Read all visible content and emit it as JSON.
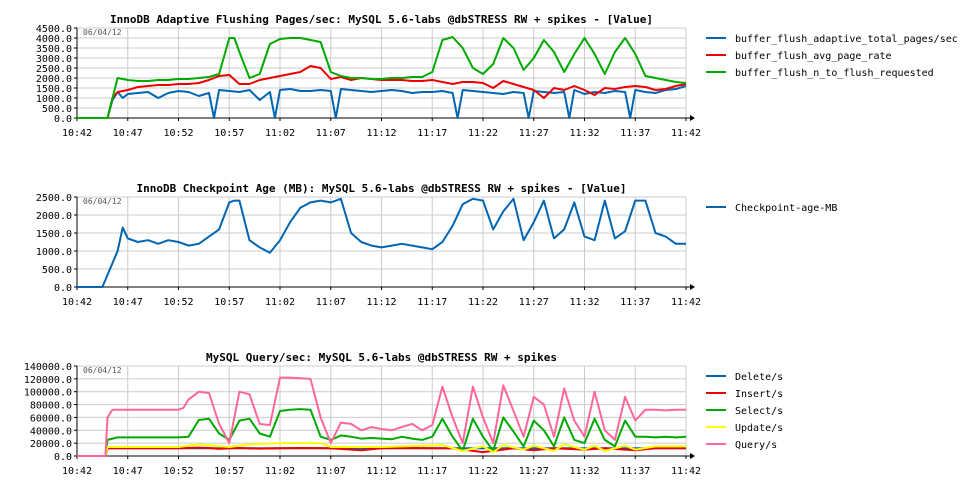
{
  "colors": {
    "blue": "#0066b3",
    "red": "#ee0000",
    "green": "#00aa00",
    "yellow": "#ffff00",
    "pink": "#ff6699",
    "grid": "#cccccc",
    "axis": "#000000"
  },
  "x_ticks": [
    "10:42",
    "10:47",
    "10:52",
    "10:57",
    "11:02",
    "11:07",
    "11:12",
    "11:17",
    "11:22",
    "11:27",
    "11:32",
    "11:37",
    "11:42"
  ],
  "chart_data": [
    {
      "type": "line",
      "title": "InnoDB Adaptive Flushing Pages/sec: MySQL 5.6-labs @dbSTRESS RW + spikes - [Value]",
      "date_stamp": "06/04/12",
      "xlabel": "",
      "ylabel": "",
      "x_range": [
        "10:42",
        "11:42"
      ],
      "ylim": [
        0,
        4500
      ],
      "y_ticks": [
        "0.0",
        "500.0",
        "1000.0",
        "1500.0",
        "2000.0",
        "2500.0",
        "3000.0",
        "3500.0",
        "4000.0",
        "4500.0"
      ],
      "y_tick_values": [
        0,
        500,
        1000,
        1500,
        2000,
        2500,
        3000,
        3500,
        4000,
        4500
      ],
      "grid": true,
      "legend_position": "right",
      "series": [
        {
          "name": "buffer_flush_adaptive_total_pages/sec",
          "color": "#0066b3",
          "x": [
            0,
            3,
            3.5,
            4,
            4.5,
            5,
            6,
            7,
            8,
            9,
            10,
            11,
            12,
            13,
            13.5,
            14,
            15,
            16,
            17,
            18,
            19,
            19.5,
            20,
            21,
            22,
            23,
            24,
            25,
            25.5,
            26,
            27,
            28,
            29,
            30,
            31,
            32,
            33,
            34,
            35,
            36,
            37,
            37.5,
            38,
            39,
            40,
            41,
            42,
            43,
            44,
            44.5,
            45,
            46,
            47,
            48,
            48.5,
            49,
            50,
            51,
            52,
            53,
            54,
            54.5,
            55,
            56,
            57,
            58,
            59,
            60
          ],
          "values": [
            0,
            0,
            900,
            1300,
            1000,
            1200,
            1250,
            1300,
            1000,
            1250,
            1350,
            1300,
            1100,
            1250,
            0,
            1400,
            1350,
            1300,
            1400,
            900,
            1300,
            0,
            1400,
            1450,
            1350,
            1350,
            1400,
            1350,
            0,
            1450,
            1400,
            1350,
            1300,
            1350,
            1400,
            1350,
            1250,
            1300,
            1300,
            1350,
            1250,
            0,
            1400,
            1350,
            1300,
            1250,
            1200,
            1300,
            1250,
            0,
            1350,
            1300,
            1250,
            1300,
            0,
            1400,
            1200,
            1300,
            1250,
            1350,
            1300,
            0,
            1400,
            1300,
            1250,
            1400,
            1450,
            1600
          ]
        },
        {
          "name": "buffer_flush_avg_page_rate",
          "color": "#ee0000",
          "x": [
            0,
            3,
            3.5,
            4,
            5,
            6,
            7,
            8,
            9,
            10,
            11,
            12,
            13,
            14,
            15,
            16,
            17,
            18,
            19,
            20,
            21,
            22,
            23,
            24,
            25,
            26,
            27,
            28,
            29,
            30,
            31,
            32,
            33,
            34,
            35,
            36,
            37,
            38,
            39,
            40,
            41,
            42,
            43,
            44,
            45,
            46,
            47,
            48,
            49,
            50,
            51,
            52,
            53,
            54,
            55,
            56,
            57,
            58,
            59,
            60
          ],
          "values": [
            0,
            0,
            1000,
            1300,
            1400,
            1550,
            1600,
            1650,
            1650,
            1700,
            1700,
            1750,
            1900,
            2100,
            2150,
            1700,
            1700,
            1900,
            2000,
            2100,
            2200,
            2300,
            2600,
            2500,
            1950,
            2050,
            1900,
            2000,
            1950,
            1900,
            1900,
            1900,
            1850,
            1850,
            1900,
            1800,
            1700,
            1800,
            1800,
            1750,
            1500,
            1850,
            1700,
            1550,
            1400,
            1000,
            1500,
            1400,
            1600,
            1400,
            1150,
            1500,
            1450,
            1550,
            1600,
            1550,
            1400,
            1450,
            1600,
            1700
          ]
        },
        {
          "name": "buffer_flush_n_to_flush_requested",
          "color": "#00aa00",
          "x": [
            0,
            3,
            4,
            5,
            6,
            7,
            8,
            9,
            10,
            11,
            12,
            13,
            14,
            15,
            15.5,
            16,
            17,
            18,
            19,
            20,
            21,
            22,
            23,
            24,
            25,
            26,
            27,
            28,
            29,
            30,
            31,
            32,
            33,
            34,
            35,
            36,
            37,
            38,
            39,
            40,
            41,
            42,
            43,
            44,
            45,
            46,
            47,
            48,
            49,
            50,
            51,
            52,
            53,
            54,
            55,
            56,
            57,
            58,
            59,
            60
          ],
          "values": [
            0,
            0,
            2000,
            1900,
            1850,
            1850,
            1900,
            1900,
            1950,
            1950,
            2000,
            2050,
            2200,
            4000,
            4000,
            3300,
            2000,
            2200,
            3700,
            3950,
            4000,
            4000,
            3900,
            3800,
            2300,
            2100,
            2000,
            2000,
            1950,
            1950,
            2000,
            2000,
            2050,
            2050,
            2300,
            3900,
            4050,
            3500,
            2500,
            2200,
            2700,
            4000,
            3500,
            2400,
            3000,
            3900,
            3300,
            2300,
            3200,
            4000,
            3200,
            2200,
            3300,
            4000,
            3200,
            2100,
            2000,
            1900,
            1800,
            1750
          ]
        }
      ]
    },
    {
      "type": "line",
      "title": "InnoDB Checkpoint Age (MB): MySQL 5.6-labs @dbSTRESS RW + spikes - [Value]",
      "date_stamp": "06/04/12",
      "xlabel": "",
      "ylabel": "",
      "x_range": [
        "10:42",
        "11:42"
      ],
      "ylim": [
        0,
        2500
      ],
      "y_ticks": [
        "0.0",
        "500.0",
        "1000.0",
        "1500.0",
        "2000.0",
        "2500.0"
      ],
      "y_tick_values": [
        0,
        500,
        1000,
        1500,
        2000,
        2500
      ],
      "grid": true,
      "legend_position": "right",
      "series": [
        {
          "name": "Checkpoint-age-MB",
          "color": "#0066b3",
          "x": [
            0,
            2.5,
            4,
            4.5,
            5,
            6,
            7,
            8,
            9,
            10,
            11,
            12,
            13,
            14,
            15,
            15.5,
            16,
            17,
            18,
            19,
            20,
            21,
            22,
            23,
            24,
            25,
            26,
            27,
            28,
            29,
            30,
            31,
            32,
            33,
            34,
            35,
            36,
            37,
            38,
            39,
            40,
            41,
            42,
            43,
            44,
            45,
            46,
            47,
            48,
            49,
            50,
            51,
            52,
            53,
            54,
            55,
            56,
            57,
            58,
            59,
            60
          ],
          "values": [
            0,
            0,
            1000,
            1650,
            1350,
            1250,
            1300,
            1200,
            1300,
            1250,
            1150,
            1200,
            1400,
            1600,
            2350,
            2400,
            2400,
            1300,
            1100,
            950,
            1300,
            1800,
            2200,
            2350,
            2400,
            2350,
            2450,
            1500,
            1250,
            1150,
            1100,
            1150,
            1200,
            1150,
            1100,
            1050,
            1250,
            1700,
            2300,
            2450,
            2400,
            1600,
            2100,
            2450,
            1300,
            1800,
            2400,
            1350,
            1600,
            2350,
            1400,
            1300,
            2400,
            1350,
            1550,
            2400,
            2400,
            1500,
            1400,
            1200,
            1200
          ]
        }
      ]
    },
    {
      "type": "line",
      "title": "MySQL Query/sec: MySQL 5.6-labs @dbSTRESS RW + spikes",
      "date_stamp": "06/04/12",
      "xlabel": "",
      "ylabel": "",
      "x_range": [
        "10:42",
        "11:42"
      ],
      "ylim": [
        0,
        140000
      ],
      "y_ticks": [
        "0.0",
        "20000.0",
        "40000.0",
        "60000.0",
        "80000.0",
        "100000.0",
        "120000.0",
        "140000.0"
      ],
      "y_tick_values": [
        0,
        20000,
        40000,
        60000,
        80000,
        100000,
        120000,
        140000
      ],
      "grid": true,
      "legend_position": "right",
      "series": [
        {
          "name": "Delete/s",
          "color": "#0066b3",
          "x": [
            0,
            2.8,
            3,
            60
          ],
          "values": [
            0,
            0,
            12000,
            12000
          ]
        },
        {
          "name": "Insert/s",
          "color": "#ee0000",
          "x": [
            0,
            2.8,
            3,
            10,
            12,
            13,
            14,
            15,
            16,
            18,
            20,
            22,
            25,
            28,
            30,
            33,
            35,
            37,
            40,
            43,
            45,
            47,
            50,
            52,
            55,
            57,
            60
          ],
          "values": [
            0,
            0,
            12000,
            12000,
            13000,
            12500,
            11000,
            12000,
            12500,
            11500,
            12000,
            12500,
            12000,
            9000,
            12000,
            12500,
            12000,
            12000,
            6000,
            12000,
            9000,
            12000,
            10000,
            12000,
            9000,
            12000,
            12000
          ]
        },
        {
          "name": "Select/s",
          "color": "#00aa00",
          "x": [
            0,
            2.8,
            3,
            4,
            10,
            11,
            12,
            13,
            14,
            15,
            16,
            17,
            18,
            19,
            20,
            21,
            22,
            23,
            24,
            25,
            26,
            27,
            28,
            29,
            30,
            31,
            32,
            33,
            34,
            35,
            36,
            37,
            38,
            39,
            40,
            41,
            42,
            43,
            44,
            45,
            46,
            47,
            48,
            49,
            50,
            51,
            52,
            53,
            54,
            55,
            56,
            57,
            58,
            59,
            60
          ],
          "values": [
            0,
            0,
            25000,
            29000,
            29000,
            30000,
            56000,
            58000,
            35000,
            25000,
            55000,
            58000,
            35000,
            30000,
            70000,
            72000,
            73000,
            72000,
            30000,
            25000,
            32000,
            30000,
            27000,
            28000,
            27000,
            26000,
            30000,
            27000,
            25000,
            30000,
            58000,
            30000,
            8000,
            58000,
            30000,
            8000,
            60000,
            38000,
            15000,
            55000,
            40000,
            15000,
            60000,
            25000,
            20000,
            58000,
            25000,
            15000,
            55000,
            30000,
            30000,
            29000,
            30000,
            29000,
            30000
          ]
        },
        {
          "name": "Update/s",
          "color": "#ffff00",
          "x": [
            0,
            2.8,
            3,
            10,
            12,
            15,
            17,
            20,
            24,
            25,
            30,
            36,
            38,
            40,
            41,
            42,
            44,
            45,
            47,
            48,
            50,
            51,
            52,
            54,
            55,
            57,
            60
          ],
          "values": [
            0,
            0,
            14000,
            14000,
            18000,
            14000,
            18000,
            20000,
            20000,
            14000,
            14000,
            17000,
            8000,
            15000,
            6000,
            17000,
            10000,
            16000,
            8000,
            18000,
            10000,
            16000,
            8000,
            16000,
            10000,
            15000,
            15000
          ]
        },
        {
          "name": "Query/s",
          "color": "#ff6699",
          "x": [
            0,
            2.8,
            3,
            3.5,
            10,
            10.5,
            11,
            12,
            13,
            14,
            15,
            16,
            17,
            18,
            19,
            20,
            21,
            22,
            23,
            24,
            25,
            26,
            27,
            28,
            29,
            30,
            31,
            32,
            33,
            34,
            35,
            36,
            37,
            38,
            39,
            40,
            41,
            42,
            43,
            44,
            45,
            46,
            47,
            48,
            49,
            50,
            51,
            52,
            53,
            54,
            55,
            56,
            57,
            58,
            59,
            60
          ],
          "values": [
            0,
            0,
            60000,
            72000,
            72000,
            75000,
            88000,
            100000,
            98000,
            50000,
            20000,
            100000,
            96000,
            50000,
            48000,
            122000,
            122000,
            121000,
            120000,
            60000,
            20000,
            52000,
            50000,
            40000,
            45000,
            42000,
            40000,
            45000,
            50000,
            40000,
            48000,
            108000,
            60000,
            20000,
            108000,
            60000,
            20000,
            110000,
            70000,
            30000,
            92000,
            80000,
            30000,
            105000,
            55000,
            30000,
            100000,
            40000,
            25000,
            92000,
            55000,
            72000,
            72000,
            71000,
            72000,
            72000
          ]
        }
      ]
    }
  ]
}
